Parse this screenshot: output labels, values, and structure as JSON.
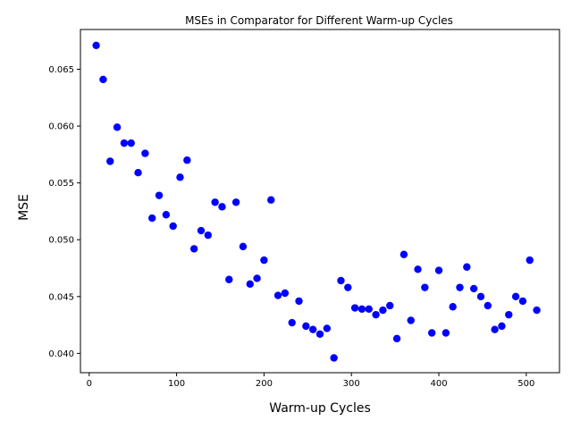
{
  "chart_data": {
    "type": "scatter",
    "title": "MSEs in Comparator for Different Warm-up Cycles",
    "xlabel": "Warm-up Cycles",
    "ylabel": "MSE",
    "xlim": [
      -10,
      538
    ],
    "ylim": [
      0.0383,
      0.0685
    ],
    "xticks": [
      0,
      100,
      200,
      300,
      400,
      500
    ],
    "yticks": [
      0.04,
      0.045,
      0.05,
      0.055,
      0.06,
      0.065
    ],
    "xtick_labels": [
      "0",
      "100",
      "200",
      "300",
      "400",
      "500"
    ],
    "ytick_labels": [
      "0.040",
      "0.045",
      "0.050",
      "0.055",
      "0.060",
      "0.065"
    ],
    "grid": false,
    "marker_color": "#0000ff",
    "series": [
      {
        "x": [
          8,
          16,
          24,
          32,
          40,
          48,
          56,
          64,
          72,
          80,
          88,
          96,
          104,
          112,
          120,
          128,
          136,
          144,
          152,
          160,
          168,
          176,
          184,
          192,
          200,
          208,
          216,
          224,
          232,
          240,
          248,
          256,
          264,
          272,
          280,
          288,
          296,
          304,
          312,
          320,
          328,
          336,
          344,
          352,
          360,
          368,
          376,
          384,
          392,
          400,
          408,
          416,
          424,
          432,
          440,
          448,
          456,
          464,
          472,
          480,
          488,
          496,
          504,
          512
        ],
        "y": [
          0.0671,
          0.0641,
          0.0569,
          0.0599,
          0.0585,
          0.0585,
          0.0559,
          0.0576,
          0.0519,
          0.0539,
          0.0522,
          0.0512,
          0.0555,
          0.057,
          0.0492,
          0.0508,
          0.0504,
          0.0533,
          0.0529,
          0.0465,
          0.0533,
          0.0494,
          0.0461,
          0.0466,
          0.0482,
          0.0535,
          0.0451,
          0.0453,
          0.0427,
          0.0446,
          0.0424,
          0.0421,
          0.0417,
          0.0422,
          0.0396,
          0.0464,
          0.0458,
          0.044,
          0.0439,
          0.0439,
          0.0434,
          0.0438,
          0.0442,
          0.0413,
          0.0487,
          0.0429,
          0.0474,
          0.0458,
          0.0418,
          0.0473,
          0.0418,
          0.0441,
          0.0458,
          0.0476,
          0.0457,
          0.045,
          0.0442,
          0.0421,
          0.0424,
          0.0434,
          0.045,
          0.0446,
          0.0482,
          0.0438
        ]
      }
    ]
  }
}
